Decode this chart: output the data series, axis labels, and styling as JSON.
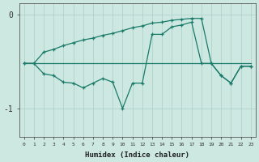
{
  "xlabel": "Humidex (Indice chaleur)",
  "background_color": "#cce8e0",
  "line_color": "#1a7a6a",
  "grid_color": "#aacfc8",
  "x": [
    0,
    1,
    2,
    3,
    4,
    5,
    6,
    7,
    8,
    9,
    10,
    11,
    12,
    13,
    14,
    15,
    16,
    17,
    18,
    19,
    20,
    21,
    22,
    23
  ],
  "line1": [
    -0.52,
    -0.52,
    -0.52,
    -0.52,
    -0.52,
    -0.52,
    -0.52,
    -0.52,
    -0.52,
    -0.52,
    -0.52,
    -0.52,
    -0.52,
    -0.52,
    -0.52,
    -0.52,
    -0.52,
    -0.52,
    -0.52,
    -0.52,
    -0.52,
    -0.52,
    -0.52,
    -0.52
  ],
  "line2": [
    -0.52,
    -0.52,
    -0.63,
    -0.65,
    -0.72,
    -0.73,
    -0.78,
    -0.73,
    -0.68,
    -0.72,
    -1.0,
    -0.73,
    -0.73,
    -0.21,
    -0.21,
    -0.13,
    -0.11,
    -0.08,
    -0.52,
    -0.52,
    -0.65,
    -0.73,
    -0.55,
    -0.55
  ],
  "line3": [
    -0.52,
    -0.52,
    -0.4,
    -0.37,
    -0.33,
    -0.3,
    -0.27,
    -0.25,
    -0.22,
    -0.2,
    -0.17,
    -0.14,
    -0.12,
    -0.09,
    -0.08,
    -0.06,
    -0.05,
    -0.04,
    -0.04,
    -0.52,
    -0.65,
    -0.73,
    -0.55,
    -0.55
  ],
  "ylim": [
    -1.3,
    0.12
  ],
  "xlim": [
    -0.5,
    23.5
  ],
  "yticks": [
    0,
    -1
  ],
  "ytick_labels": [
    "0",
    "-1"
  ],
  "xtick_labels": [
    "0",
    "1",
    "2",
    "3",
    "4",
    "5",
    "6",
    "7",
    "8",
    "9",
    "10",
    "11",
    "12",
    "13",
    "14",
    "15",
    "16",
    "17",
    "18",
    "19",
    "20",
    "21",
    "22",
    "23"
  ]
}
